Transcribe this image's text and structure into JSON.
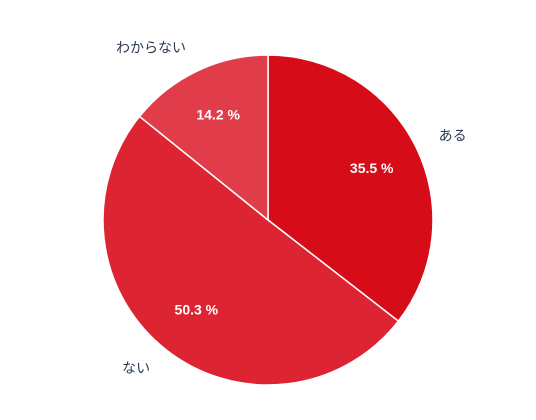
{
  "chart_data": {
    "type": "pie",
    "categories": [
      "ある",
      "ない",
      "わからない"
    ],
    "values": [
      35.5,
      50.3,
      14.2
    ],
    "value_labels": [
      "35.5 %",
      "50.3 %",
      "14.2 %"
    ],
    "colors": [
      "#d70c19",
      "#dc2432",
      "#e03c49"
    ]
  }
}
